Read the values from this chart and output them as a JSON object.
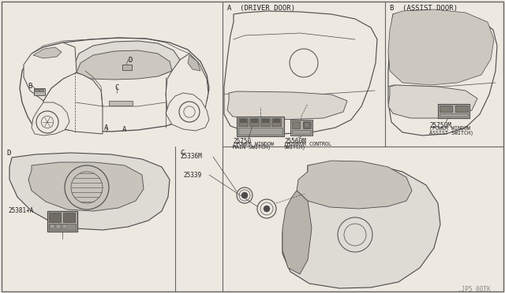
{
  "bg_color": "#ede8e0",
  "line_color": "#4a4a4a",
  "text_color": "#222222",
  "border_color": "#666666",
  "fig_width": 6.4,
  "fig_height": 3.72,
  "dpi": 100,
  "watermark": ".JP5 00TK",
  "panel_A_label": "A  (DRIVER DOOR)",
  "panel_B_label": "B  (ASSIST DOOR)",
  "panel_C_label": "C",
  "panel_D_label": "D",
  "part_25750": "25750",
  "part_25750_desc1": "(POWER WINDOW",
  "part_25750_desc2": "MAIN SWITCH)",
  "part_25560M": "25560M",
  "part_25560M_desc1": "(MIRROR CONTROL",
  "part_25560M_desc2": "SWITCH)",
  "part_25750M": "25750M",
  "part_25750M_desc1": "(POWER WINDOW",
  "part_25750M_desc2": "ASSIST SWITCH)",
  "part_25336M": "25336M",
  "part_25339": "25339",
  "part_25381A": "25381+A",
  "label_A": "A",
  "label_B": "B",
  "label_C": "C",
  "label_D": "D"
}
